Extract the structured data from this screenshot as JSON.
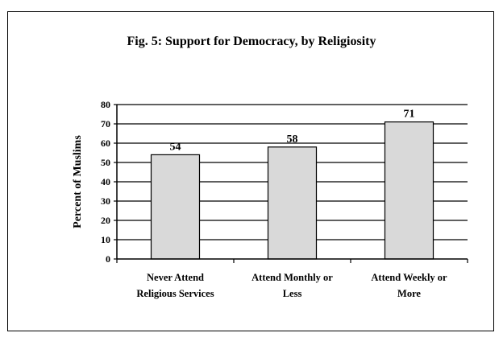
{
  "chart_data": {
    "type": "bar",
    "title": "Fig. 5:  Support for Democracy, by Religiosity",
    "ylabel": "Percent of Muslims",
    "xlabel": "",
    "categories": [
      [
        "Never Attend",
        "Religious Services"
      ],
      [
        "Attend Monthly or",
        "Less"
      ],
      [
        "Attend Weekly or",
        "More"
      ]
    ],
    "values": [
      54,
      58,
      71
    ],
    "data_labels": [
      "54",
      "58",
      "71"
    ],
    "ylim": [
      0,
      80
    ],
    "yticks": [
      "0",
      "10",
      "20",
      "30",
      "40",
      "50",
      "60",
      "70",
      "80"
    ],
    "grid": true,
    "legend": "none",
    "bar_color": "#d9d9d9"
  }
}
